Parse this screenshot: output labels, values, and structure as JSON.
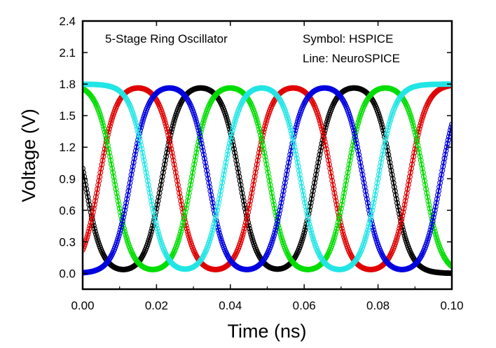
{
  "chart_data": {
    "type": "line",
    "annotations": {
      "title": "5-Stage Ring Oscillator",
      "legend_symbol": "Symbol: HSPICE",
      "legend_line": "Line: NeuroSPICE"
    },
    "xlabel": "Time (ns)",
    "ylabel": "Voltage (V)",
    "xlim": [
      0.0,
      0.1
    ],
    "ylim": [
      -0.15,
      2.4
    ],
    "x_ticks": [
      "0.00",
      "0.02",
      "0.04",
      "0.06",
      "0.08",
      "0.10"
    ],
    "y_ticks": [
      "0.0",
      "0.3",
      "0.6",
      "0.9",
      "1.2",
      "1.5",
      "1.8",
      "2.1",
      "2.4"
    ],
    "grid": false,
    "vdd": 1.8,
    "period_ns": 0.0415,
    "series": [
      {
        "color": "#000000",
        "transitions_ns": [
          {
            "t": 0.0005,
            "dir": "fall"
          },
          {
            "t": 0.0215,
            "dir": "rise"
          },
          {
            "t": 0.0425,
            "dir": "fall"
          },
          {
            "t": 0.063,
            "dir": "rise"
          },
          {
            "t": 0.084,
            "dir": "fall"
          }
        ]
      },
      {
        "color": "#e00000",
        "transitions_ns": [
          {
            "t": 0.0045,
            "dir": "rise"
          },
          {
            "t": 0.0255,
            "dir": "fall"
          },
          {
            "t": 0.0465,
            "dir": "rise"
          },
          {
            "t": 0.0675,
            "dir": "fall"
          },
          {
            "t": 0.0885,
            "dir": "rise"
          }
        ]
      },
      {
        "color": "#00dd00",
        "transitions_ns": [
          {
            "t": 0.0085,
            "dir": "fall"
          },
          {
            "t": 0.0295,
            "dir": "rise"
          },
          {
            "t": 0.0505,
            "dir": "fall"
          },
          {
            "t": 0.0715,
            "dir": "rise"
          },
          {
            "t": 0.0925,
            "dir": "fall"
          }
        ]
      },
      {
        "color": "#0000e0",
        "transitions_ns": [
          {
            "t": 0.013,
            "dir": "rise"
          },
          {
            "t": 0.034,
            "dir": "fall"
          },
          {
            "t": 0.055,
            "dir": "rise"
          },
          {
            "t": 0.076,
            "dir": "fall"
          },
          {
            "t": 0.097,
            "dir": "rise"
          }
        ]
      },
      {
        "color": "#22e5e5",
        "transitions_ns": [
          {
            "t": 0.0175,
            "dir": "fall"
          },
          {
            "t": 0.038,
            "dir": "rise"
          },
          {
            "t": 0.059,
            "dir": "fall"
          },
          {
            "t": 0.08,
            "dir": "rise"
          }
        ]
      }
    ]
  }
}
